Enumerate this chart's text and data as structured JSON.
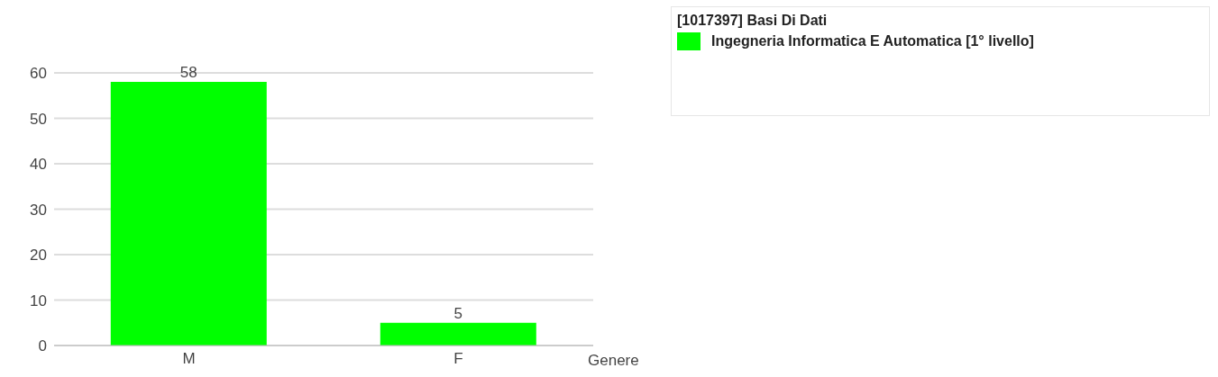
{
  "chart_data": {
    "type": "bar",
    "xlabel": "Genere",
    "legend_title": "[1017397] Basi Di Dati",
    "categories": [
      "M",
      "F"
    ],
    "series": [
      {
        "name": "Ingegneria Informatica E Automatica [1° livello]",
        "color": "#00ff00",
        "values": [
          58,
          5
        ]
      }
    ],
    "ylim": [
      0,
      60
    ],
    "yticks": [
      0,
      10,
      20,
      30,
      40,
      50,
      60
    ],
    "grid": "y",
    "legend": "top right",
    "data_labels": true
  }
}
